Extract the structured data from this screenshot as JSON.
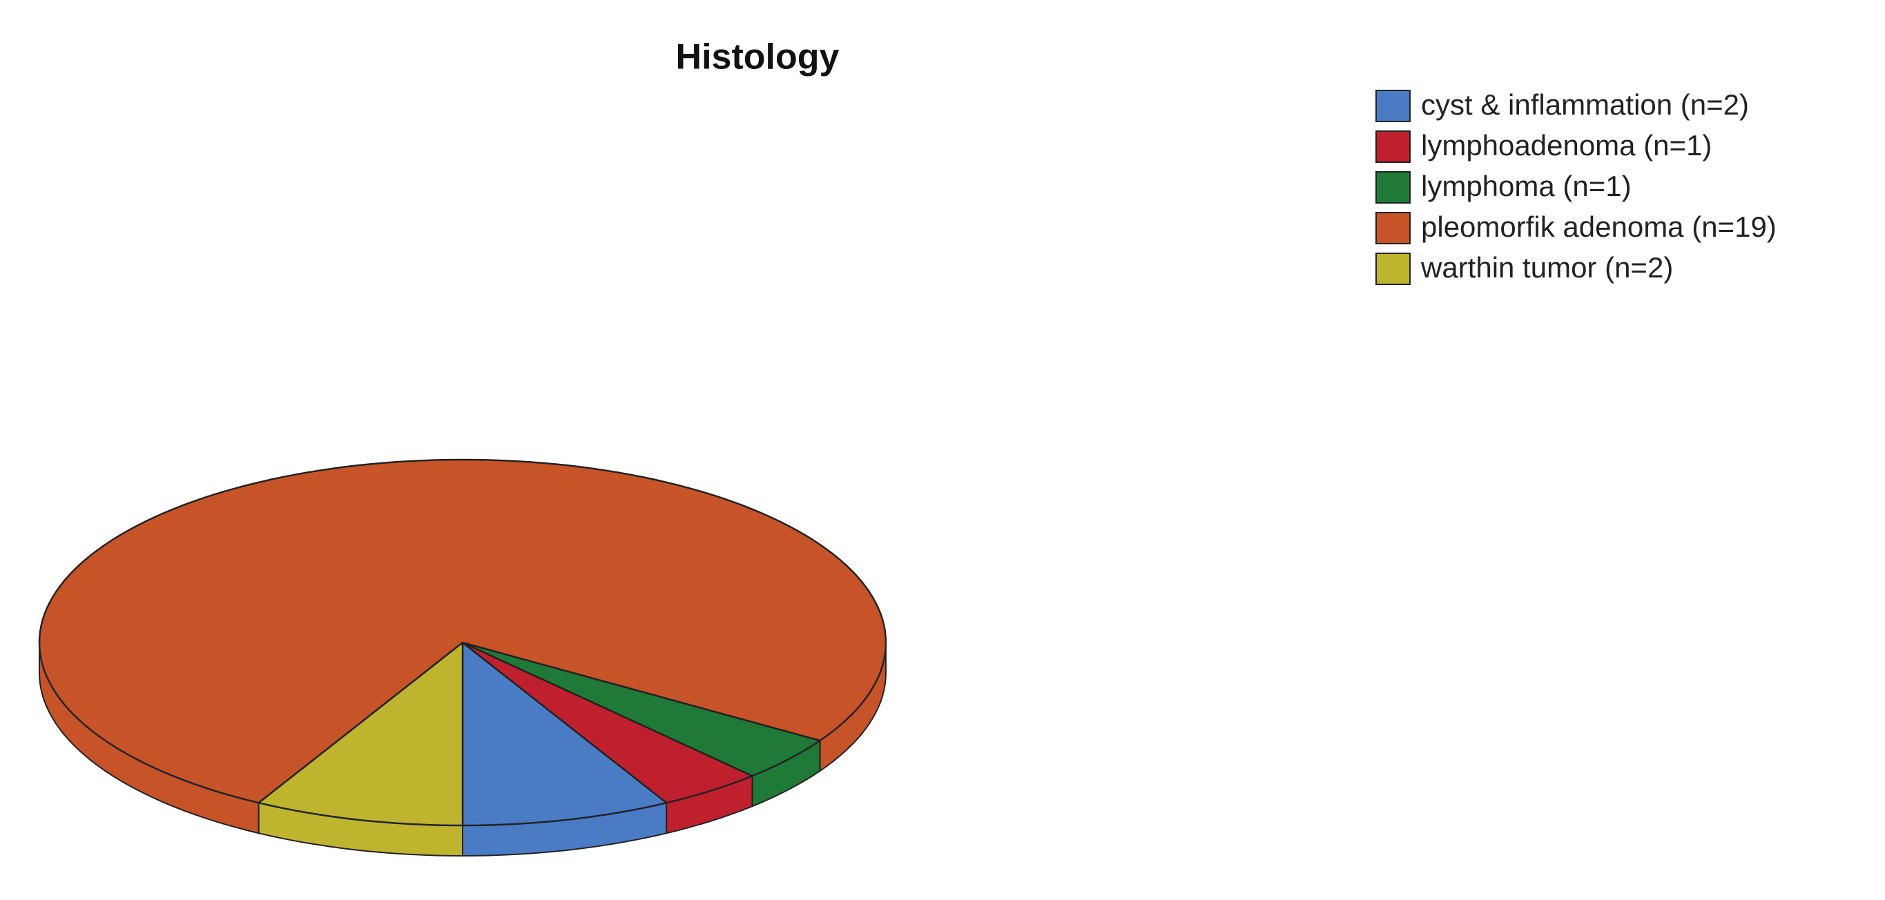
{
  "chart_data": {
    "type": "pie",
    "title": "Histology",
    "categories": [
      "cyst & inflammation (n=2)",
      "lymphoadenoma (n=1)",
      "lymphoma (n=1)",
      "pleomorfik adenoma (n=19)",
      "warthin tumor (n=2)"
    ],
    "values": [
      2,
      1,
      1,
      19,
      2
    ],
    "colors": [
      "#4a7cc6",
      "#c0202e",
      "#1f7a38",
      "#c75428",
      "#bfb42e"
    ],
    "legend": "top-right"
  }
}
